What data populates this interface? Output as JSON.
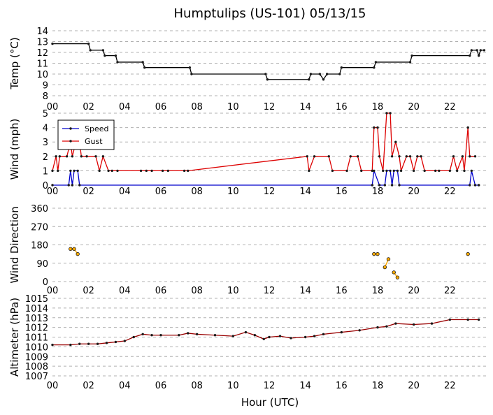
{
  "title": "Humptulips (US-101) 05/13/15",
  "xlabel": "Hour (UTC)",
  "x_tick_labels": [
    "00",
    "02",
    "04",
    "06",
    "08",
    "10",
    "12",
    "14",
    "16",
    "18",
    "20",
    "22"
  ],
  "colors": {
    "temp": "#000000",
    "speed": "#0000cc",
    "gust": "#dd0000",
    "dir": "#ffaa00",
    "alt": "#990000",
    "marker": "#1a1a1a",
    "grid": "#b0b0b0"
  },
  "chart_data": [
    {
      "type": "line",
      "ylabel": "Temp (°C)",
      "ylim": [
        8,
        14
      ],
      "yticks": [
        8,
        9,
        10,
        11,
        12,
        13,
        14
      ],
      "grid": true,
      "series": [
        {
          "values": [
            [
              0,
              12.8
            ],
            [
              2,
              12.8
            ],
            [
              2.1,
              12.2
            ],
            [
              2.8,
              12.2
            ],
            [
              2.9,
              11.7
            ],
            [
              3.5,
              11.7
            ],
            [
              3.6,
              11.1
            ],
            [
              5.0,
              11.1
            ],
            [
              5.1,
              10.6
            ],
            [
              7.6,
              10.6
            ],
            [
              7.7,
              10.0
            ],
            [
              11.8,
              10.0
            ],
            [
              11.9,
              9.5
            ],
            [
              14.2,
              9.5
            ],
            [
              14.3,
              10.0
            ],
            [
              14.8,
              10.0
            ],
            [
              15.0,
              9.5
            ],
            [
              15.2,
              10.0
            ],
            [
              15.9,
              10.0
            ],
            [
              16.0,
              10.6
            ],
            [
              17.8,
              10.6
            ],
            [
              17.9,
              11.1
            ],
            [
              19.8,
              11.1
            ],
            [
              19.9,
              11.7
            ],
            [
              23.1,
              11.7
            ],
            [
              23.2,
              12.2
            ],
            [
              23.5,
              12.2
            ],
            [
              23.6,
              11.7
            ],
            [
              23.7,
              12.2
            ],
            [
              23.9,
              12.2
            ]
          ]
        }
      ]
    },
    {
      "type": "line",
      "ylabel": "Wind (mph)",
      "ylim": [
        0,
        5
      ],
      "yticks": [
        0,
        1,
        2,
        3,
        4,
        5
      ],
      "grid": true,
      "legend": "top-left",
      "series": [
        {
          "name": "Speed",
          "values": [
            [
              0,
              0
            ],
            [
              0.9,
              0
            ],
            [
              1.0,
              1
            ],
            [
              1.1,
              0
            ],
            [
              1.2,
              1
            ],
            [
              1.4,
              1
            ],
            [
              1.5,
              0
            ],
            [
              17.7,
              0
            ],
            [
              17.8,
              1
            ],
            [
              18.1,
              0
            ],
            [
              18.4,
              0
            ],
            [
              18.5,
              1
            ],
            [
              18.7,
              1
            ],
            [
              18.8,
              0
            ],
            [
              18.9,
              1
            ],
            [
              19.1,
              1
            ],
            [
              19.2,
              0
            ],
            [
              23.1,
              0
            ],
            [
              23.2,
              1
            ],
            [
              23.4,
              0
            ],
            [
              23.6,
              0
            ]
          ]
        },
        {
          "name": "Gust",
          "values": [
            [
              0,
              1
            ],
            [
              0.2,
              2
            ],
            [
              0.3,
              1
            ],
            [
              0.4,
              2
            ],
            [
              0.8,
              2
            ],
            [
              1.0,
              3
            ],
            [
              1.1,
              2
            ],
            [
              1.3,
              3
            ],
            [
              1.5,
              3
            ],
            [
              1.6,
              2
            ],
            [
              1.9,
              2
            ],
            [
              2.4,
              2
            ],
            [
              2.6,
              1
            ],
            [
              2.8,
              2
            ],
            [
              3.1,
              1
            ],
            [
              3.3,
              1
            ],
            [
              3.6,
              1
            ],
            [
              4.9,
              1
            ],
            [
              5.2,
              1
            ],
            [
              5.5,
              1
            ],
            [
              6.1,
              1
            ],
            [
              6.4,
              1
            ],
            [
              7.3,
              1
            ],
            [
              7.5,
              1
            ],
            [
              14.1,
              2
            ],
            [
              14.2,
              1
            ],
            [
              14.5,
              2
            ],
            [
              15.3,
              2
            ],
            [
              15.5,
              1
            ],
            [
              16.3,
              1
            ],
            [
              16.5,
              2
            ],
            [
              16.9,
              2
            ],
            [
              17.1,
              1
            ],
            [
              17.7,
              1
            ],
            [
              17.8,
              4
            ],
            [
              18.0,
              4
            ],
            [
              18.1,
              2
            ],
            [
              18.3,
              1
            ],
            [
              18.5,
              5
            ],
            [
              18.7,
              5
            ],
            [
              18.8,
              2
            ],
            [
              19.0,
              3
            ],
            [
              19.2,
              2
            ],
            [
              19.3,
              1
            ],
            [
              19.6,
              2
            ],
            [
              19.8,
              2
            ],
            [
              20.0,
              1
            ],
            [
              20.2,
              2
            ],
            [
              20.4,
              2
            ],
            [
              20.6,
              1
            ],
            [
              21.2,
              1
            ],
            [
              21.4,
              1
            ],
            [
              22.0,
              1
            ],
            [
              22.2,
              2
            ],
            [
              22.4,
              1
            ],
            [
              22.7,
              2
            ],
            [
              22.8,
              1
            ],
            [
              23.0,
              4
            ],
            [
              23.1,
              2
            ],
            [
              23.4,
              2
            ]
          ]
        }
      ]
    },
    {
      "type": "scatter",
      "ylabel": "Wind Direction",
      "ylim": [
        0,
        360
      ],
      "yticks": [
        0,
        90,
        180,
        270,
        360
      ],
      "grid": true,
      "series": [
        {
          "values": [
            [
              1.0,
              160
            ],
            [
              1.2,
              160
            ],
            [
              1.4,
              135
            ],
            [
              17.8,
              135
            ],
            [
              18.0,
              135
            ],
            [
              18.4,
              70
            ],
            [
              18.6,
              110
            ],
            [
              18.9,
              45
            ],
            [
              19.1,
              20
            ],
            [
              23.0,
              135
            ]
          ],
          "connect": [
            [
              0,
              1
            ],
            [
              1,
              2
            ],
            [
              3,
              4
            ],
            [
              5,
              6
            ],
            [
              7,
              8
            ]
          ]
        }
      ]
    },
    {
      "type": "line",
      "ylabel": "Altimeter (hPa)",
      "ylim": [
        1007,
        1015
      ],
      "yticks": [
        1007,
        1008,
        1009,
        1010,
        1011,
        1012,
        1013,
        1014,
        1015
      ],
      "grid": true,
      "series": [
        {
          "values": [
            [
              0,
              1010.2
            ],
            [
              1,
              1010.2
            ],
            [
              1.5,
              1010.3
            ],
            [
              2,
              1010.3
            ],
            [
              2.5,
              1010.3
            ],
            [
              3,
              1010.4
            ],
            [
              3.5,
              1010.5
            ],
            [
              4,
              1010.6
            ],
            [
              4.5,
              1011.0
            ],
            [
              5,
              1011.3
            ],
            [
              5.5,
              1011.2
            ],
            [
              6,
              1011.2
            ],
            [
              7,
              1011.2
            ],
            [
              7.5,
              1011.4
            ],
            [
              8,
              1011.3
            ],
            [
              9,
              1011.2
            ],
            [
              10,
              1011.1
            ],
            [
              10.7,
              1011.5
            ],
            [
              11.2,
              1011.2
            ],
            [
              11.7,
              1010.8
            ],
            [
              12,
              1011.0
            ],
            [
              12.6,
              1011.1
            ],
            [
              13.2,
              1010.9
            ],
            [
              14,
              1011.0
            ],
            [
              14.5,
              1011.1
            ],
            [
              15,
              1011.3
            ],
            [
              16,
              1011.5
            ],
            [
              17,
              1011.7
            ],
            [
              18,
              1012.0
            ],
            [
              18.5,
              1012.1
            ],
            [
              19,
              1012.4
            ],
            [
              20,
              1012.3
            ],
            [
              21,
              1012.4
            ],
            [
              22,
              1012.8
            ],
            [
              23,
              1012.8
            ],
            [
              23.6,
              1012.8
            ]
          ]
        }
      ]
    }
  ]
}
